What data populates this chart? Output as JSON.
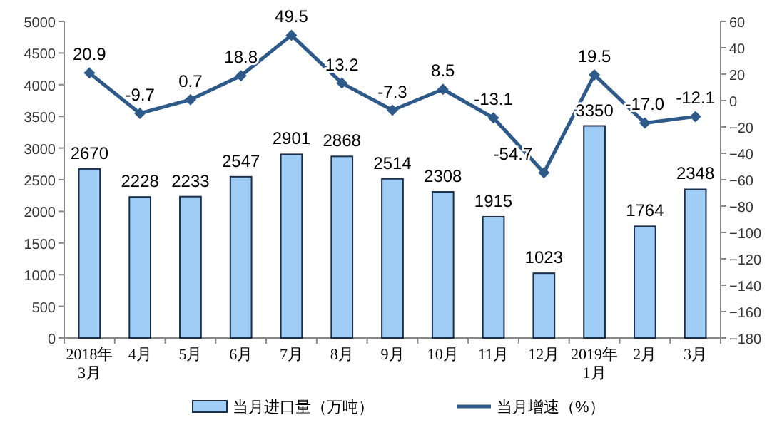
{
  "chart_data": {
    "type": "bar",
    "categories": [
      "2018年\n3月",
      "4月",
      "5月",
      "6月",
      "7月",
      "8月",
      "9月",
      "10月",
      "11月",
      "12月",
      "2019年\n1月",
      "2月",
      "3月"
    ],
    "series": [
      {
        "name": "当月进口量（万吨）",
        "color": "#9fcdf5",
        "values": [
          2670,
          2228,
          2233,
          2547,
          2901,
          2868,
          2514,
          2308,
          1915,
          1023,
          3350,
          1764,
          2348
        ]
      },
      {
        "name": "当月增速（%）",
        "type": "line",
        "axis": "y2",
        "color": "#2e5a8a",
        "marker": "diamond",
        "values": [
          20.9,
          -9.7,
          0.7,
          18.8,
          49.5,
          13.2,
          -7.3,
          8.5,
          -13.1,
          -54.7,
          19.5,
          -17.0,
          -12.1
        ],
        "value_labels": [
          "20.9",
          "-9.7",
          "0.7",
          "18.8",
          "49.5",
          "13.2",
          "-7.3",
          "8.5",
          "-13.1",
          "-54.7",
          "19.5",
          "-17.0",
          "-12.1"
        ]
      }
    ],
    "ylim": [
      0,
      5000
    ],
    "yticks": [
      0,
      500,
      1000,
      1500,
      2000,
      2500,
      3000,
      3500,
      4000,
      4500,
      5000
    ],
    "y2lim": [
      -180,
      60
    ],
    "y2ticks": [
      -180,
      -160,
      -140,
      -120,
      -100,
      -80,
      -60,
      -40,
      -20,
      0,
      20,
      40,
      60
    ],
    "data_labels": true,
    "legend": "bottom",
    "grid": false
  }
}
